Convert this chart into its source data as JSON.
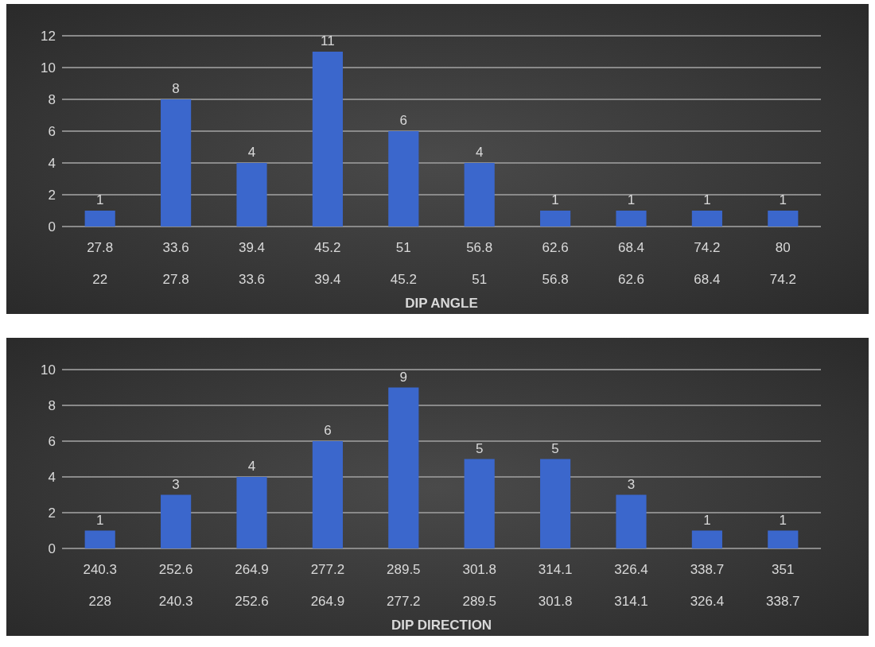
{
  "chart_data": [
    {
      "type": "bar",
      "xlabel": "DIP ANGLE",
      "categories": [
        "27.8\n\n22",
        "33.6\n\n27.8",
        "39.4\n\n33.6",
        "45.2\n\n39.4",
        "51\n\n45.2",
        "56.8\n\n51",
        "62.6\n\n56.8",
        "68.4\n\n62.6",
        "74.2\n\n68.4",
        "80\n\n74.2"
      ],
      "values": [
        1,
        8,
        4,
        11,
        6,
        4,
        1,
        1,
        1,
        1
      ],
      "color": "#3b67cc",
      "ylim": [
        0,
        12
      ],
      "yticks": [
        0,
        2,
        4,
        6,
        8,
        10,
        12
      ],
      "grid": "y",
      "data_labels": true
    },
    {
      "type": "bar",
      "xlabel": "DIP DIRECTION",
      "categories": [
        "240.3\n\n228",
        "252.6\n\n240.3",
        "264.9\n\n252.6",
        "277.2\n\n264.9",
        "289.5\n\n277.2",
        "301.8\n\n289.5",
        "314.1\n\n301.8",
        "326.4\n\n314.1",
        "338.7\n\n326.4",
        "351\n\n338.7"
      ],
      "values": [
        1,
        3,
        4,
        6,
        9,
        5,
        5,
        3,
        1,
        1
      ],
      "color": "#3b67cc",
      "ylim": [
        0,
        10
      ],
      "yticks": [
        0,
        2,
        4,
        6,
        8,
        10
      ],
      "grid": "y",
      "data_labels": true
    }
  ]
}
